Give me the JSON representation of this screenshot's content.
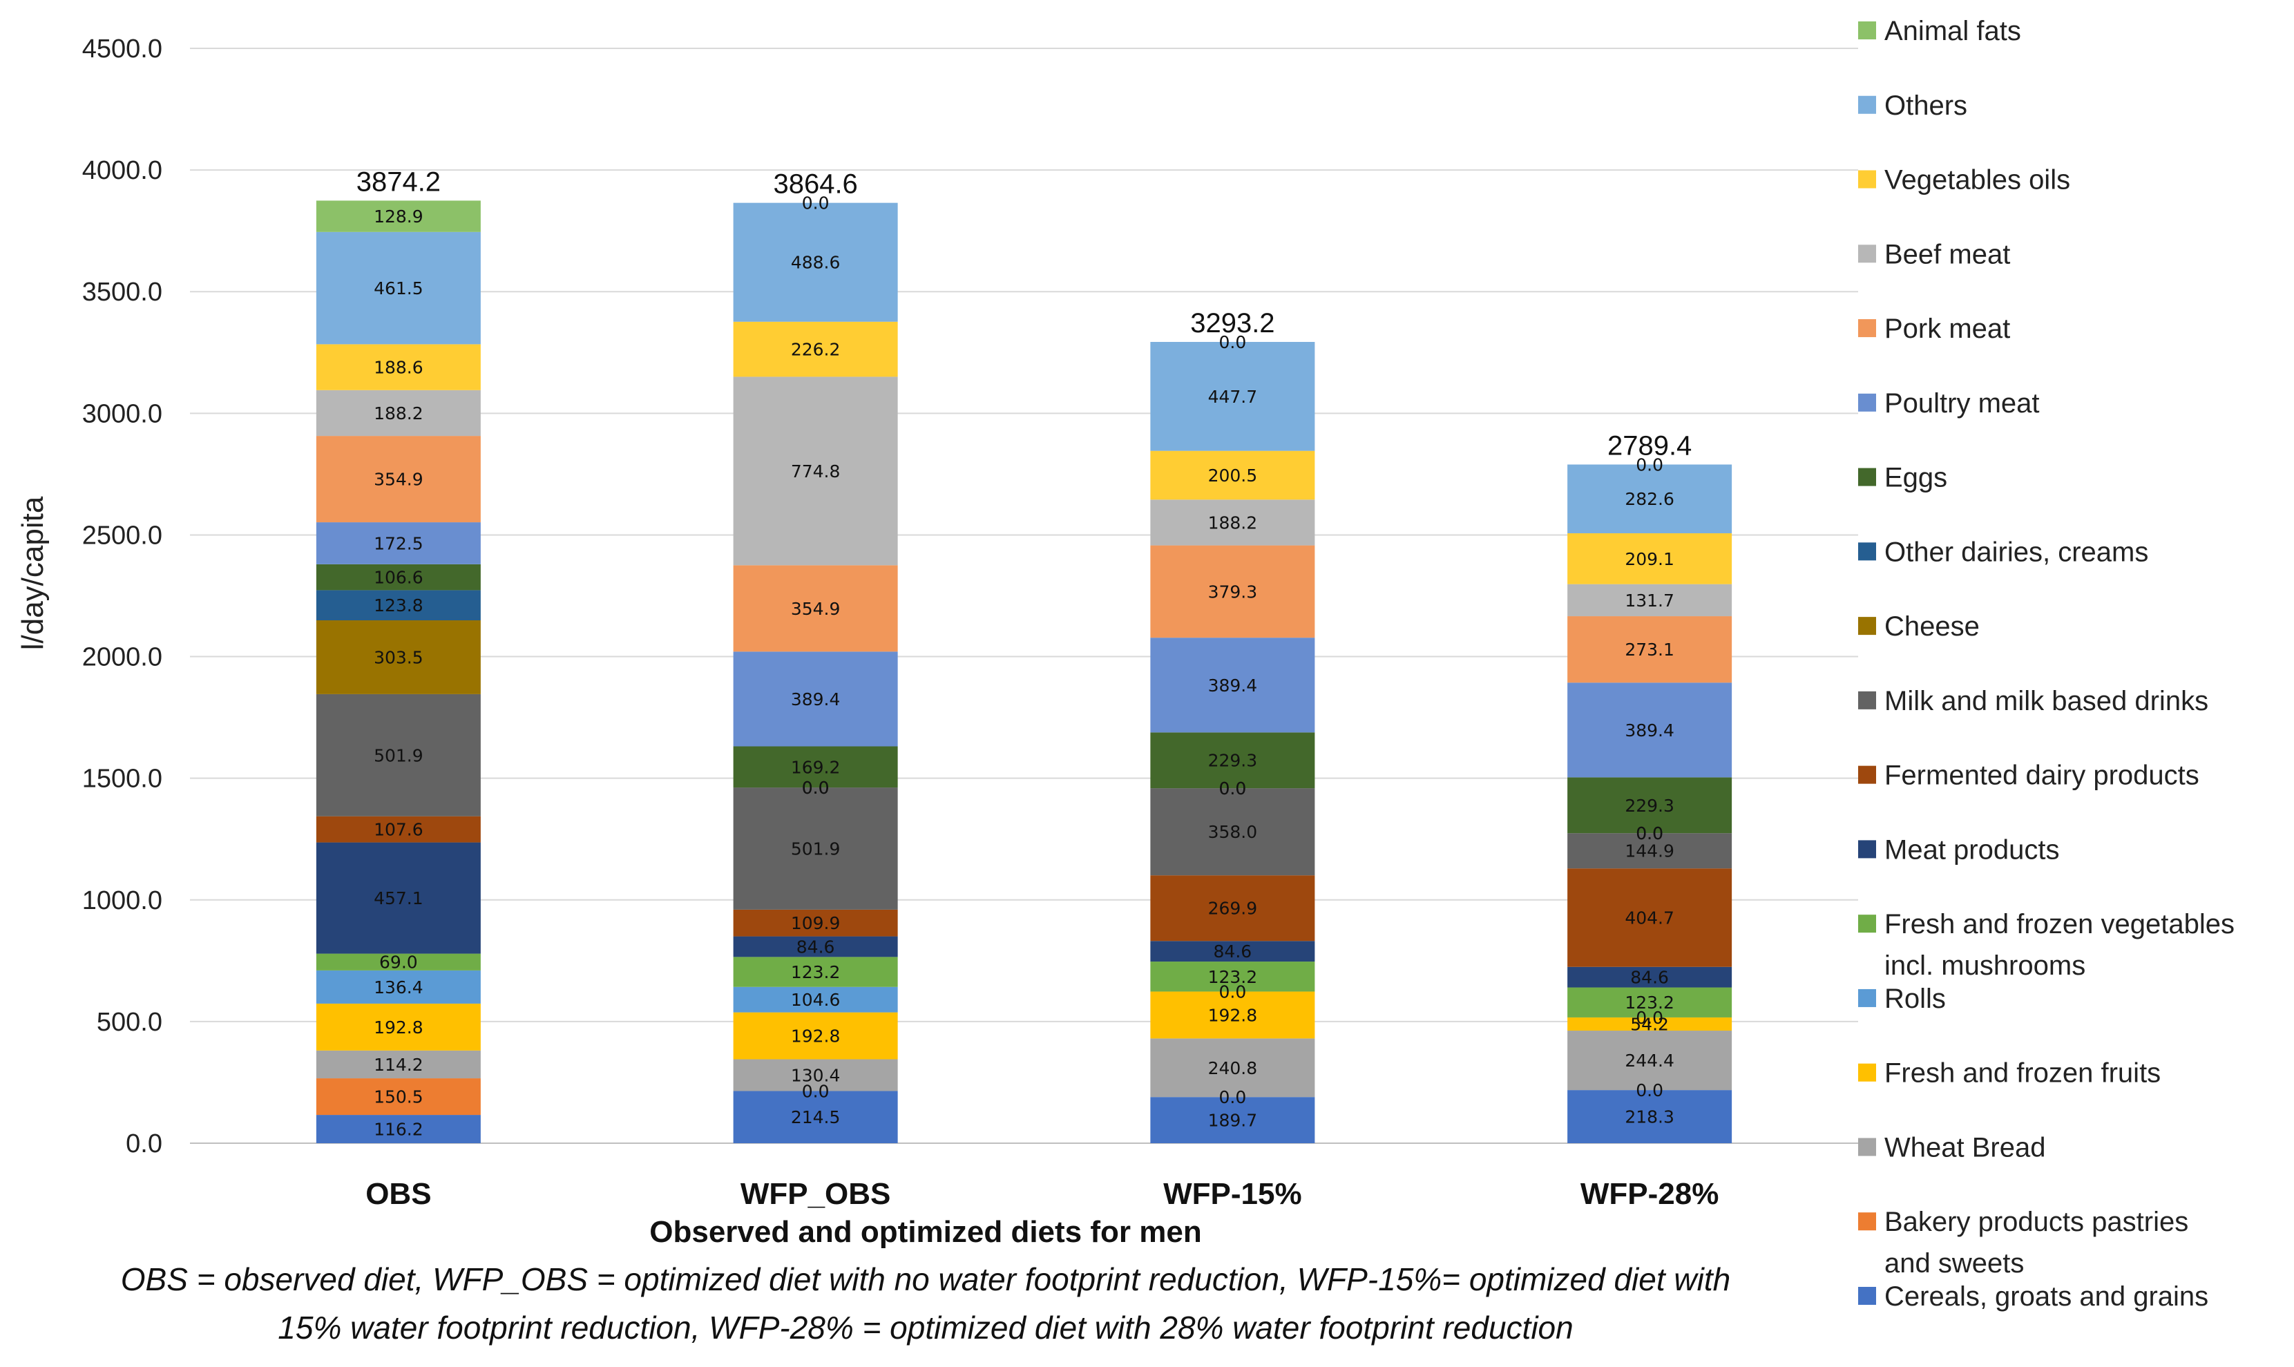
{
  "chart_data": {
    "type": "bar",
    "stacked": true,
    "title": "",
    "xlabel": "Observed and optimized diets for men",
    "ylabel": "l/day/capita",
    "ylim": [
      0,
      4500
    ],
    "ytick_labels": [
      "0.0",
      "500.0",
      "1000.0",
      "1500.0",
      "2000.0",
      "2500.0",
      "3000.0",
      "3500.0",
      "4000.0",
      "4500.0"
    ],
    "grid": true,
    "legend_position": "right",
    "categories": [
      "OBS",
      "WFP_OBS",
      "WFP-15%",
      "WFP-28%"
    ],
    "totals": [
      "3874.2",
      "3864.6",
      "3293.2",
      "2789.4"
    ],
    "series": [
      {
        "name": "Cereals, groats and grains",
        "color": "#4472C4",
        "values": [
          116.2,
          214.5,
          189.7,
          218.3
        ]
      },
      {
        "name": "Bakery products pastries and sweets",
        "color": "#ED7D31",
        "values": [
          150.5,
          0.0,
          0.0,
          0.0
        ]
      },
      {
        "name": "Wheat Bread",
        "color": "#A5A5A5",
        "values": [
          114.2,
          130.4,
          240.8,
          244.4
        ]
      },
      {
        "name": "Fresh and frozen fruits",
        "color": "#FFC000",
        "values": [
          192.8,
          192.8,
          192.8,
          54.2
        ]
      },
      {
        "name": "Rolls",
        "color": "#5B9BD5",
        "values": [
          136.4,
          104.6,
          0.0,
          0.0
        ]
      },
      {
        "name": "Fresh and frozen vegetables incl. mushrooms",
        "color": "#70AD47",
        "values": [
          69.0,
          123.2,
          123.2,
          123.2
        ]
      },
      {
        "name": "Meat products",
        "color": "#264478",
        "values": [
          457.1,
          84.6,
          84.6,
          84.6
        ]
      },
      {
        "name": "Fermented dairy products",
        "color": "#9E480E",
        "values": [
          107.6,
          109.9,
          269.9,
          404.7
        ]
      },
      {
        "name": "Milk and milk based drinks",
        "color": "#636363",
        "values": [
          501.9,
          501.9,
          358.0,
          144.9
        ]
      },
      {
        "name": "Cheese",
        "color": "#997300",
        "values": [
          303.5,
          0.0,
          0.0,
          0.0
        ]
      },
      {
        "name": "Other dairies, creams",
        "color": "#255E91",
        "values": [
          123.8,
          0.0,
          0.0,
          0.0
        ]
      },
      {
        "name": "Eggs",
        "color": "#43682B",
        "values": [
          106.6,
          169.2,
          229.3,
          229.3
        ]
      },
      {
        "name": "Poultry meat",
        "color": "#698ED0",
        "values": [
          172.5,
          389.4,
          389.4,
          389.4
        ]
      },
      {
        "name": "Pork meat",
        "color": "#F1975A",
        "values": [
          354.9,
          354.9,
          379.3,
          273.1
        ]
      },
      {
        "name": "Beef meat",
        "color": "#B7B7B7",
        "values": [
          188.2,
          774.8,
          188.2,
          131.7
        ]
      },
      {
        "name": "Vegetables oils",
        "color": "#FFCD33",
        "values": [
          188.6,
          226.2,
          200.5,
          209.1
        ]
      },
      {
        "name": "Others",
        "color": "#7CAFDD",
        "values": [
          461.5,
          488.6,
          447.7,
          282.6
        ]
      },
      {
        "name": "Animal fats",
        "color": "#8CC168",
        "values": [
          128.9,
          0.0,
          0.0,
          0.0
        ]
      }
    ],
    "legend_entries": [
      [
        "Animal fats"
      ],
      [
        "Others"
      ],
      [
        "Vegetables oils"
      ],
      [
        "Beef meat"
      ],
      [
        "Pork meat"
      ],
      [
        "Poultry meat"
      ],
      [
        "Eggs"
      ],
      [
        "Other dairies, creams"
      ],
      [
        "Cheese"
      ],
      [
        "Milk and milk based drinks"
      ],
      [
        "Fermented dairy products"
      ],
      [
        "Meat products"
      ],
      [
        "Fresh and frozen vegetables",
        "incl. mushrooms"
      ],
      [
        "Rolls"
      ],
      [
        "Fresh and frozen fruits"
      ],
      [
        "Wheat Bread"
      ],
      [
        "Bakery products pastries",
        "and sweets"
      ],
      [
        "Cereals, groats and grains"
      ]
    ],
    "caption": [
      "OBS = observed diet, WFP_OBS = optimized diet with no water footprint reduction, WFP-15%= optimized diet with",
      "15% water footprint reduction, WFP-28% = optimized diet with 28% water footprint reduction"
    ]
  }
}
